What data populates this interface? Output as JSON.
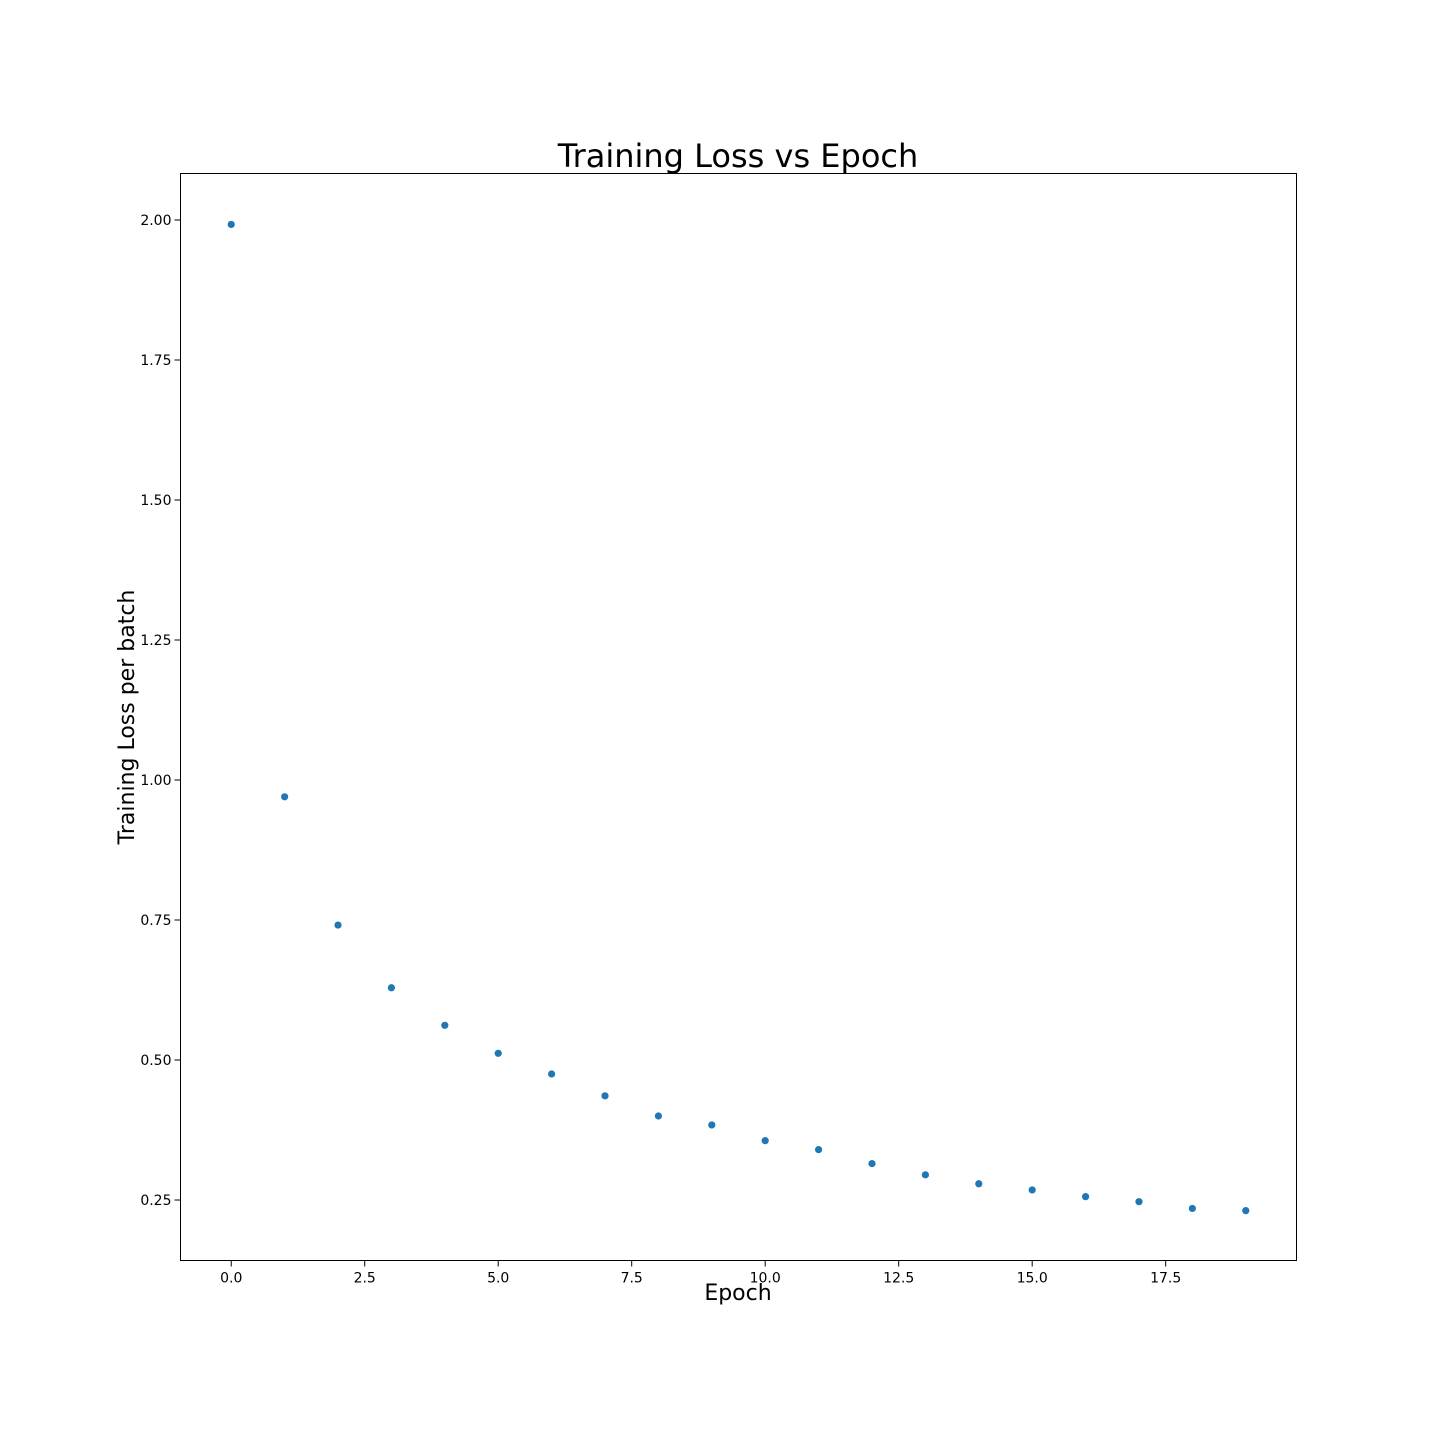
{
  "chart_data": {
    "type": "scatter",
    "title": "Training Loss vs Epoch",
    "xlabel": "Epoch",
    "ylabel": "Training Loss per batch",
    "xlim": [
      -0.95,
      19.95
    ],
    "ylim": [
      0.142,
      2.083
    ],
    "xticks": [
      0.0,
      2.5,
      5.0,
      7.5,
      10.0,
      12.5,
      15.0,
      17.5
    ],
    "xtick_labels": [
      "0.0",
      "2.5",
      "5.0",
      "7.5",
      "10.0",
      "12.5",
      "15.0",
      "17.5"
    ],
    "yticks": [
      0.25,
      0.5,
      0.75,
      1.0,
      1.25,
      1.5,
      1.75,
      2.0
    ],
    "ytick_labels": [
      "0.25",
      "0.50",
      "0.75",
      "1.00",
      "1.25",
      "1.50",
      "1.75",
      "2.00"
    ],
    "grid": false,
    "marker_color": "#1f77b4",
    "series": [
      {
        "x": [
          0,
          1,
          2,
          3,
          4,
          5,
          6,
          7,
          8,
          9,
          10,
          11,
          12,
          13,
          14,
          15,
          16,
          17,
          18,
          19
        ],
        "y": [
          1.992,
          0.97,
          0.741,
          0.629,
          0.562,
          0.512,
          0.475,
          0.436,
          0.4,
          0.384,
          0.356,
          0.34,
          0.315,
          0.295,
          0.279,
          0.268,
          0.256,
          0.247,
          0.235,
          0.231
        ]
      }
    ]
  }
}
